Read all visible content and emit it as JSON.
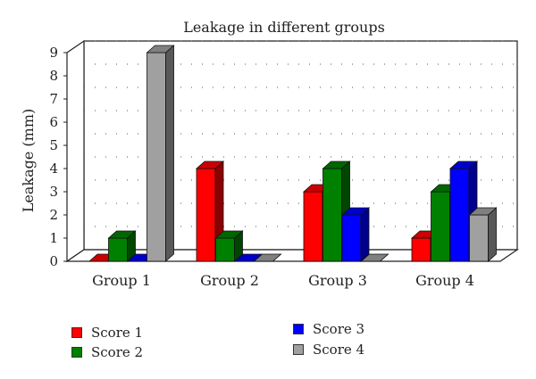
{
  "chart_data": {
    "type": "bar",
    "title": "Leakage in different groups",
    "xlabel": "",
    "ylabel": "Leakage (mm)",
    "ylim": [
      0,
      9
    ],
    "yticks": [
      "0",
      "1",
      "2",
      "3",
      "4",
      "5",
      "6",
      "7",
      "8",
      "9"
    ],
    "categories": [
      "Group 1",
      "Group 2",
      "Group 3",
      "Group 4"
    ],
    "series": [
      {
        "name": "Score 1",
        "color": "#ff0000",
        "values": [
          0,
          4,
          3,
          1
        ]
      },
      {
        "name": "Score 2",
        "color": "#008000",
        "values": [
          1,
          1,
          4,
          3
        ]
      },
      {
        "name": "Score 3",
        "color": "#0000ff",
        "values": [
          0,
          0,
          2,
          4
        ]
      },
      {
        "name": "Score 4",
        "color": "#a0a0a0",
        "values": [
          9,
          0,
          0,
          2
        ]
      }
    ],
    "grid": "dotted",
    "legend_position": "bottom"
  }
}
